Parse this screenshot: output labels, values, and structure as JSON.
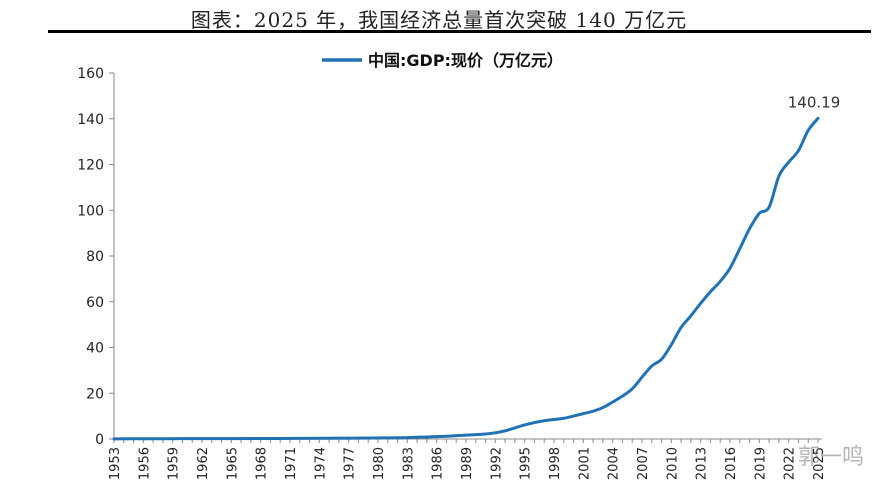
{
  "header": {
    "title": "图表：2025 年，我国经济总量首次突破 140 万亿元",
    "watermark": "郭一鸣"
  },
  "chart_data": {
    "type": "line",
    "title": "",
    "xlabel": "",
    "ylabel": "",
    "ylim": [
      0,
      160
    ],
    "yticks": [
      0,
      20,
      40,
      60,
      80,
      100,
      120,
      140,
      160
    ],
    "xtick_labels": [
      "1953",
      "1956",
      "1959",
      "1962",
      "1965",
      "1968",
      "1971",
      "1974",
      "1977",
      "1980",
      "1983",
      "1986",
      "1989",
      "1992",
      "1995",
      "1998",
      "2001",
      "2004",
      "2007",
      "2010",
      "2013",
      "2016",
      "2019",
      "2022",
      "2025"
    ],
    "legend_position": "top-center",
    "grid": false,
    "series": [
      {
        "name": "中国:GDP:现价（万亿元）",
        "color": "#2171b5",
        "x": [
          1953,
          1955,
          1960,
          1965,
          1970,
          1975,
          1978,
          1980,
          1983,
          1985,
          1987,
          1989,
          1990,
          1991,
          1992,
          1993,
          1994,
          1995,
          1996,
          1997,
          1998,
          1999,
          2000,
          2001,
          2002,
          2003,
          2004,
          2005,
          2006,
          2007,
          2008,
          2009,
          2010,
          2011,
          2012,
          2013,
          2014,
          2015,
          2016,
          2017,
          2018,
          2019,
          2020,
          2021,
          2022,
          2023,
          2024,
          2025
        ],
        "values": [
          0.08,
          0.09,
          0.15,
          0.17,
          0.23,
          0.3,
          0.37,
          0.46,
          0.6,
          0.9,
          1.21,
          1.7,
          1.89,
          2.2,
          2.71,
          3.57,
          4.86,
          6.13,
          7.18,
          7.97,
          8.52,
          9.06,
          10.03,
          11.09,
          12.17,
          13.74,
          16.18,
          18.73,
          21.94,
          27.01,
          31.92,
          34.85,
          41.21,
          48.79,
          53.86,
          59.3,
          64.36,
          68.89,
          74.64,
          83.2,
          91.93,
          98.65,
          101.36,
          114.92,
          121.02,
          126.06,
          134.91,
          140.19
        ]
      }
    ],
    "annotations": [
      {
        "x": 2025,
        "y": 140.19,
        "text": "140.19"
      }
    ]
  }
}
